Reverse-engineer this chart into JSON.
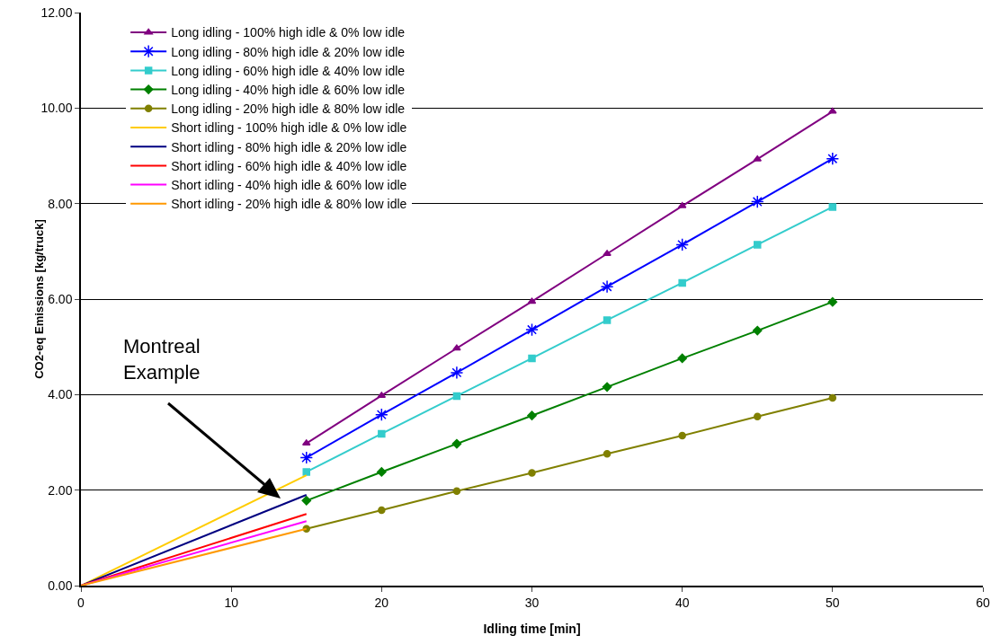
{
  "chart_data": {
    "type": "line",
    "xlabel": "Idling time [min]",
    "ylabel": "CO2-eq Emissions [kg/truck]",
    "xlim": [
      0,
      60
    ],
    "xticks": [
      0,
      10,
      20,
      30,
      40,
      50,
      60
    ],
    "ylim": [
      0,
      12
    ],
    "yticks": [
      {
        "value": 0,
        "label": "0.00"
      },
      {
        "value": 2,
        "label": "2.00"
      },
      {
        "value": 4,
        "label": "4.00"
      },
      {
        "value": 6,
        "label": "6.00"
      },
      {
        "value": 8,
        "label": "8.00"
      },
      {
        "value": 10,
        "label": "10.00"
      },
      {
        "value": 12,
        "label": "12.00"
      }
    ],
    "grid": "y",
    "legend": "top left",
    "line_style": "solid",
    "annotations": [
      "Montreal\nExample"
    ],
    "series": [
      {
        "name": "Long idling - 100% high idle & 0% low idle",
        "color": "#800080",
        "marker": "triangle",
        "x": [
          15,
          20,
          25,
          30,
          35,
          40,
          45,
          50
        ],
        "values": [
          2.98,
          3.98,
          4.97,
          5.95,
          6.95,
          7.95,
          8.93,
          9.93
        ]
      },
      {
        "name": "Long idling - 80% high idle & 20% low idle",
        "color": "#0000ff",
        "marker": "cross",
        "x": [
          15,
          20,
          25,
          30,
          35,
          40,
          45,
          50
        ],
        "values": [
          2.68,
          3.58,
          4.46,
          5.36,
          6.26,
          7.14,
          8.04,
          8.94
        ]
      },
      {
        "name": "Long idling - 60% high idle & 40% low idle",
        "color": "#33cccc",
        "marker": "square",
        "x": [
          15,
          20,
          25,
          30,
          35,
          40,
          45,
          50
        ],
        "values": [
          2.38,
          3.18,
          3.97,
          4.76,
          5.56,
          6.34,
          7.14,
          7.93
        ]
      },
      {
        "name": "Long idling - 40% high idle & 60% low idle",
        "color": "#008000",
        "marker": "diamond",
        "x": [
          15,
          20,
          25,
          30,
          35,
          40,
          45,
          50
        ],
        "values": [
          1.78,
          2.38,
          2.97,
          3.56,
          4.16,
          4.76,
          5.34,
          5.94
        ]
      },
      {
        "name": "Long idling - 20% high idle & 80% low idle",
        "color": "#808000",
        "marker": "circle",
        "x": [
          15,
          20,
          25,
          30,
          35,
          40,
          45,
          50
        ],
        "values": [
          1.19,
          1.58,
          1.98,
          2.36,
          2.76,
          3.14,
          3.54,
          3.93
        ]
      },
      {
        "name": "Short idling - 100% high idle & 0% low idle",
        "color": "#ffcc00",
        "marker": "none",
        "x": [
          0,
          15
        ],
        "values": [
          0,
          2.31
        ]
      },
      {
        "name": "Short idling - 80% high idle & 20% low idle",
        "color": "#000080",
        "marker": "none",
        "x": [
          0,
          15
        ],
        "values": [
          0,
          1.9
        ]
      },
      {
        "name": "Short idling - 60% high idle & 40% low idle",
        "color": "#ff0000",
        "marker": "none",
        "x": [
          0,
          15
        ],
        "values": [
          0,
          1.5
        ]
      },
      {
        "name": "Short idling - 40% high idle & 60% low idle",
        "color": "#ff00ff",
        "marker": "none",
        "x": [
          0,
          15
        ],
        "values": [
          0,
          1.35
        ]
      },
      {
        "name": "Short idling - 20% high idle & 80% low idle",
        "color": "#ff9900",
        "marker": "none",
        "x": [
          0,
          15
        ],
        "values": [
          0,
          1.19
        ]
      }
    ]
  }
}
